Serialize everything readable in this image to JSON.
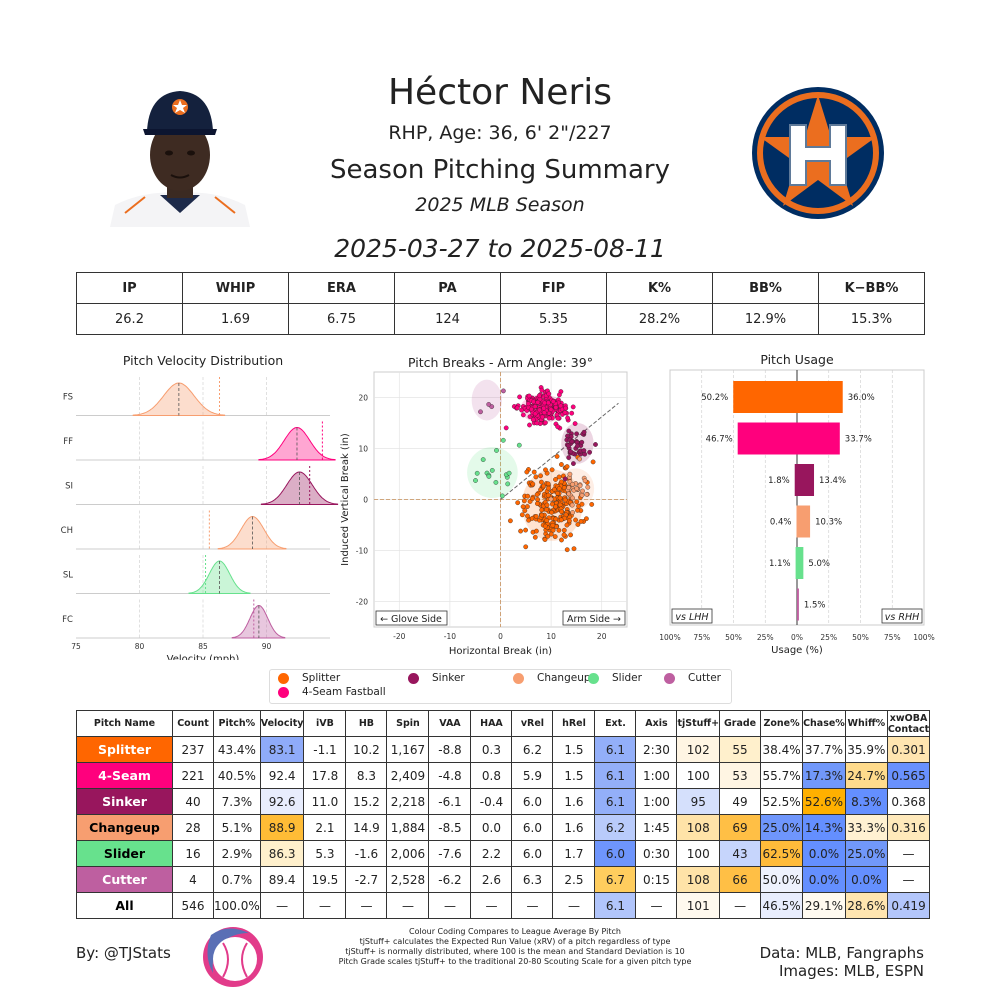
{
  "header": {
    "name": "Héctor Neris",
    "bio": "RHP, Age: 36, 6' 2\"/227",
    "summary": "Season Pitching Summary",
    "season": "2025 MLB Season",
    "dates": "2025-03-27 to 2025-08-11"
  },
  "stats": {
    "headers": [
      "IP",
      "WHIP",
      "ERA",
      "PA",
      "FIP",
      "K%",
      "BB%",
      "K−BB%"
    ],
    "values": [
      "26.2",
      "1.69",
      "6.75",
      "124",
      "5.35",
      "28.2%",
      "12.9%",
      "15.3%"
    ]
  },
  "colors": {
    "Splitter": "#ff6600",
    "4-Seam": "#ff007d",
    "Sinker": "#98165d",
    "Changeup": "#f79e70",
    "Slider": "#67e18d",
    "Cutter": "#be5fa0",
    "high": "#648fff",
    "low": "#ffb000",
    "team_navy": "#002d62",
    "team_orange": "#eb6e1f"
  },
  "chart_data": [
    {
      "type": "area",
      "title": "Pitch Velocity Distribution",
      "xlabel": "Velocity (mph)",
      "xlim": [
        75,
        95
      ],
      "xticks": [
        "75",
        "80",
        "85",
        "90"
      ],
      "series": [
        {
          "name": "FS",
          "color": "#f79e70",
          "mean": 83.1,
          "sd": 1.2,
          "league_mean": 86.3
        },
        {
          "name": "FF",
          "color": "#ff007d",
          "mean": 92.4,
          "sd": 1.0,
          "league_mean": 94.4
        },
        {
          "name": "SI",
          "color": "#98165d",
          "mean": 92.6,
          "sd": 1.0,
          "league_mean": 93.4
        },
        {
          "name": "CH",
          "color": "#f79e70",
          "mean": 88.9,
          "sd": 0.9,
          "league_mean": 85.5
        },
        {
          "name": "SL",
          "color": "#67e18d",
          "mean": 86.3,
          "sd": 0.8,
          "league_mean": 85.2
        },
        {
          "name": "FC",
          "color": "#be5fa0",
          "mean": 89.4,
          "sd": 0.7,
          "league_mean": 89.0
        }
      ]
    },
    {
      "type": "scatter",
      "title": "Pitch Breaks - Arm Angle: 39°",
      "xlabel": "Horizontal Break (in)",
      "ylabel": "Induced Vertical Break (in)",
      "xlim": [
        -25,
        25
      ],
      "ylim": [
        -25,
        25
      ],
      "xticks": [
        "-20",
        "-10",
        "0",
        "10",
        "20"
      ],
      "yticks": [
        "-20",
        "-10",
        "0",
        "10",
        "20"
      ],
      "arm_angle_deg": 39,
      "left_label": "← Glove Side",
      "right_label": "Arm Side →",
      "series": [
        {
          "name": "Splitter",
          "color": "#ff6600",
          "count": 237,
          "hb": 10.2,
          "ivb": -1.1,
          "sx": 3.0,
          "sy": 3.5
        },
        {
          "name": "4-Seam",
          "color": "#ff007d",
          "count": 221,
          "hb": 8.3,
          "ivb": 17.8,
          "sx": 2.2,
          "sy": 1.4
        },
        {
          "name": "Sinker",
          "color": "#98165d",
          "count": 40,
          "hb": 15.2,
          "ivb": 11.0,
          "sx": 1.6,
          "sy": 2.0
        },
        {
          "name": "Changeup",
          "color": "#f79e70",
          "count": 28,
          "hb": 14.9,
          "ivb": 2.1,
          "sx": 1.8,
          "sy": 2.0
        },
        {
          "name": "Slider",
          "color": "#67e18d",
          "count": 16,
          "hb": -1.6,
          "ivb": 5.3,
          "sx": 2.5,
          "sy": 2.5
        },
        {
          "name": "Cutter",
          "color": "#be5fa0",
          "count": 4,
          "hb": -2.7,
          "ivb": 19.5,
          "sx": 1.5,
          "sy": 2.0
        }
      ]
    },
    {
      "type": "bar",
      "title": "Pitch Usage",
      "xlabel": "Usage (%)",
      "xlim": [
        -100,
        100
      ],
      "xticks": [
        "100%",
        "75%",
        "50%",
        "25%",
        "0%",
        "25%",
        "50%",
        "75%",
        "100%"
      ],
      "categories": [
        "Splitter",
        "4-Seam Fastball",
        "Sinker",
        "Changeup",
        "Slider",
        "Cutter"
      ],
      "colors": [
        "#ff6600",
        "#ff007d",
        "#98165d",
        "#f79e70",
        "#67e18d",
        "#be5fa0"
      ],
      "series": [
        {
          "name": "vs LHH",
          "values": [
            50.2,
            46.7,
            1.8,
            0.4,
            1.1,
            0
          ],
          "labels": [
            "50.2%",
            "46.7%",
            "1.8%",
            "0.4%",
            "1.1%",
            ""
          ]
        },
        {
          "name": "vs RHH",
          "values": [
            36.0,
            33.7,
            13.4,
            10.3,
            5.0,
            1.5
          ],
          "labels": [
            "36.0%",
            "33.7%",
            "13.4%",
            "10.3%",
            "5.0%",
            "1.5%"
          ]
        }
      ]
    }
  ],
  "legend": {
    "items": [
      {
        "label": "Splitter",
        "color": "#ff6600"
      },
      {
        "label": "4-Seam Fastball",
        "color": "#ff007d"
      },
      {
        "label": "Sinker",
        "color": "#98165d"
      },
      {
        "label": "Changeup",
        "color": "#f79e70"
      },
      {
        "label": "Slider",
        "color": "#67e18d"
      },
      {
        "label": "Cutter",
        "color": "#be5fa0"
      }
    ]
  },
  "pitch_table": {
    "headers": [
      "Pitch Name",
      "Count",
      "Pitch%",
      "Velocity",
      "iVB",
      "HB",
      "Spin",
      "VAA",
      "HAA",
      "vRel",
      "hRel",
      "Ext.",
      "Axis",
      "tjStuff+",
      "Grade",
      "Zone%",
      "Chase%",
      "Whiff%",
      "xwOBA\nContact"
    ],
    "rows": [
      {
        "name": "Splitter",
        "name_bg": "#ff6600",
        "name_fg": "#ffffff",
        "cells": [
          "237",
          "43.4%",
          "83.1",
          "-1.1",
          "10.2",
          "1,167",
          "-8.8",
          "0.3",
          "6.2",
          "1.5",
          "6.1",
          "2:30",
          "102",
          "55",
          "38.4%",
          "37.7%",
          "35.9%",
          "0.301"
        ],
        "bgs": [
          "",
          "",
          "#8fabf9",
          "",
          "",
          "",
          "",
          "",
          "",
          "",
          "#93aff9",
          "",
          "#fff5e3",
          "#fff0cc",
          "",
          "",
          "",
          "#ffe5b0"
        ]
      },
      {
        "name": "4-Seam",
        "name_bg": "#ff007d",
        "name_fg": "#ffffff",
        "cells": [
          "221",
          "40.5%",
          "92.4",
          "17.8",
          "8.3",
          "2,409",
          "-4.8",
          "0.8",
          "5.9",
          "1.5",
          "6.1",
          "1:00",
          "100",
          "53",
          "55.7%",
          "17.3%",
          "24.7%",
          "0.565"
        ],
        "bgs": [
          "",
          "",
          "",
          "",
          "",
          "",
          "",
          "",
          "",
          "",
          "#93aff9",
          "",
          "",
          "#fff5e3",
          "",
          "#7198fa",
          "#ffdb8c",
          "#6991fd"
        ]
      },
      {
        "name": "Sinker",
        "name_bg": "#98165d",
        "name_fg": "#ffffff",
        "cells": [
          "40",
          "7.3%",
          "92.6",
          "11.0",
          "15.2",
          "2,218",
          "-6.1",
          "-0.4",
          "6.0",
          "1.6",
          "6.1",
          "1:00",
          "95",
          "49",
          "52.5%",
          "52.6%",
          "8.3%",
          "0.368"
        ],
        "bgs": [
          "",
          "",
          "#e8edfd",
          "",
          "",
          "",
          "",
          "",
          "",
          "",
          "#93aff9",
          "",
          "#d5e0fc",
          "",
          "",
          "#ffb000",
          "#648fff",
          ""
        ]
      },
      {
        "name": "Changeup",
        "name_bg": "#f79e70",
        "name_fg": "#000000",
        "cells": [
          "28",
          "5.1%",
          "88.9",
          "2.1",
          "14.9",
          "1,884",
          "-8.5",
          "0.0",
          "6.0",
          "1.6",
          "6.2",
          "1:45",
          "108",
          "69",
          "25.0%",
          "14.3%",
          "33.3%",
          "0.316"
        ],
        "bgs": [
          "",
          "",
          "#ffbc36",
          "",
          "",
          "",
          "",
          "",
          "",
          "",
          "#b9cbfb",
          "",
          "#ffe3a8",
          "#ffbf45",
          "#6f96fc",
          "#648fff",
          "#fff1d2",
          "#ffe9bb"
        ]
      },
      {
        "name": "Slider",
        "name_bg": "#67e18d",
        "name_fg": "#000000",
        "cells": [
          "16",
          "2.9%",
          "86.3",
          "5.3",
          "-1.6",
          "2,006",
          "-7.6",
          "2.2",
          "6.0",
          "1.7",
          "6.0",
          "0:30",
          "100",
          "43",
          "62.5%",
          "0.0%",
          "25.0%",
          "—"
        ],
        "bgs": [
          "",
          "",
          "#fff0cc",
          "",
          "",
          "",
          "",
          "",
          "",
          "",
          "#6e95fc",
          "",
          "",
          "#c6d5fc",
          "#ffbb3a",
          "#648fff",
          "#7198fa",
          ""
        ]
      },
      {
        "name": "Cutter",
        "name_bg": "#be5fa0",
        "name_fg": "#ffffff",
        "cells": [
          "4",
          "0.7%",
          "89.4",
          "19.5",
          "-2.7",
          "2,528",
          "-6.2",
          "2.6",
          "6.3",
          "2.5",
          "6.7",
          "0:15",
          "108",
          "66",
          "50.0%",
          "0.0%",
          "0.0%",
          "—"
        ],
        "bgs": [
          "",
          "",
          "",
          "",
          "",
          "",
          "",
          "",
          "",
          "",
          "#ffcd5e",
          "",
          "#ffe3a8",
          "#ffbf45",
          "#eef2fd",
          "#648fff",
          "#648fff",
          ""
        ]
      },
      {
        "name": "All",
        "name_bg": "#ffffff",
        "name_fg": "#000000",
        "cells": [
          "546",
          "100.0%",
          "—",
          "—",
          "—",
          "—",
          "—",
          "—",
          "—",
          "—",
          "6.1",
          "—",
          "101",
          "—",
          "46.5%",
          "29.1%",
          "28.6%",
          "0.419"
        ],
        "bgs": [
          "",
          "",
          "",
          "",
          "",
          "",
          "",
          "",
          "",
          "",
          "#b1c5fb",
          "",
          "#fff9ee",
          "",
          "#e8edfd",
          "#fffaf0",
          "#ffe5b0",
          "#b3c6fb"
        ]
      }
    ]
  },
  "footer": {
    "by": "By: @TJStats",
    "notes": [
      "Colour Coding Compares to League Average By Pitch",
      "tjStuff+ calculates the Expected Run Value (xRV) of a pitch regardless of type",
      "tjStuff+ is normally distributed, where 100 is the mean and Standard Deviation is 10",
      "Pitch Grade scales tjStuff+ to the traditional 20-80 Scouting Scale for a given pitch type"
    ],
    "data_source": "Data: MLB, Fangraphs",
    "images_source": "Images: MLB, ESPN"
  }
}
